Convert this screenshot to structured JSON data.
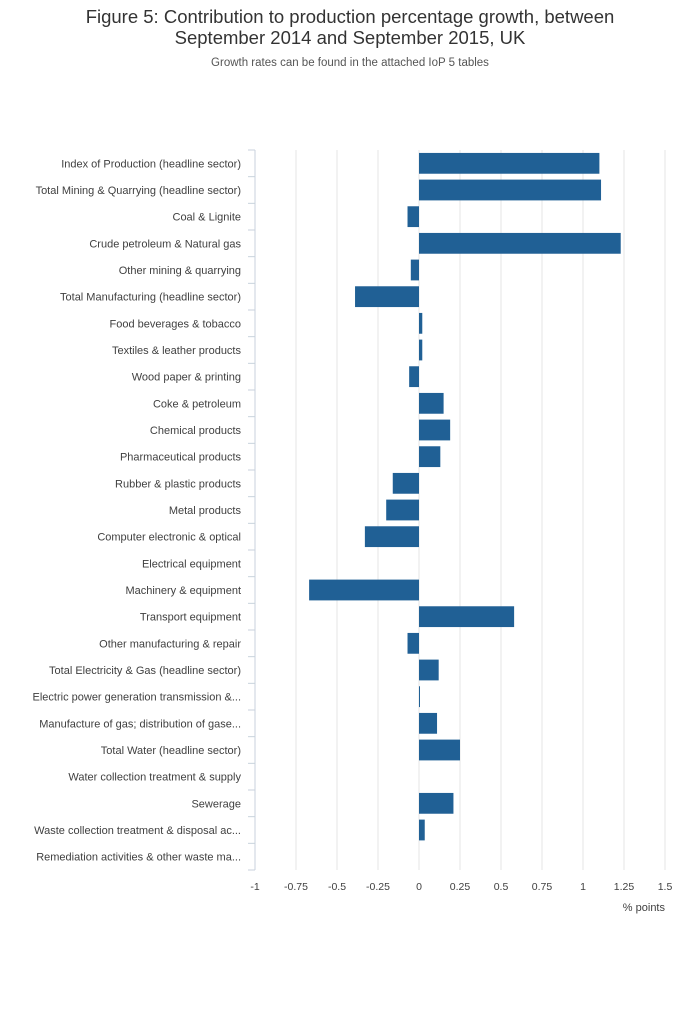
{
  "title_line1": "Figure 5: Contribution to production percentage growth, between",
  "title_line2": "September 2014 and September 2015, UK",
  "subtitle": "Growth rates can be found in the attached IoP 5 tables",
  "colors": {
    "bar": "#206095",
    "grid": "#e5e5e5",
    "axis": "#c8d2dc"
  },
  "chart_data": {
    "type": "bar",
    "orientation": "horizontal",
    "title": "Figure 5: Contribution to production percentage growth, between September 2014 and September 2015, UK",
    "subtitle": "Growth rates can be found in the attached IoP 5 tables",
    "xlabel": "% points",
    "ylabel": "",
    "xlim": [
      -1,
      1.5
    ],
    "xticks": [
      -1,
      -0.75,
      -0.5,
      -0.25,
      0,
      0.25,
      0.5,
      0.75,
      1,
      1.25,
      1.5
    ],
    "xtick_labels": [
      "-1",
      "-0.75",
      "-0.5",
      "-0.25",
      "0",
      "0.25",
      "0.5",
      "0.75",
      "1",
      "1.25",
      "1.5"
    ],
    "categories": [
      "Index of Production (headline sector)",
      "Total Mining & Quarrying (headline sector)",
      "Coal & Lignite",
      "Crude petroleum & Natural gas",
      "Other mining & quarrying",
      "Total Manufacturing (headline sector)",
      "Food beverages & tobacco",
      "Textiles & leather products",
      "Wood paper & printing",
      "Coke & petroleum",
      "Chemical products",
      "Pharmaceutical products",
      "Rubber & plastic products",
      "Metal products",
      "Computer electronic & optical",
      "Electrical equipment",
      "Machinery & equipment",
      "Transport equipment",
      "Other manufacturing & repair",
      "Total Electricity & Gas (headline sector)",
      "Electric power generation transmission &...",
      "Manufacture of gas; distribution of gase...",
      "Total Water (headline sector)",
      "Water collection treatment & supply",
      "Sewerage",
      "Waste collection treatment & disposal ac...",
      "Remediation activities & other waste ma..."
    ],
    "values": [
      1.1,
      1.11,
      -0.07,
      1.23,
      -0.05,
      -0.39,
      0.02,
      0.02,
      -0.06,
      0.15,
      0.19,
      0.13,
      -0.16,
      -0.2,
      -0.33,
      0.0,
      -0.67,
      0.58,
      -0.07,
      0.12,
      0.005,
      0.11,
      0.25,
      0.0,
      0.21,
      0.035,
      0.0
    ],
    "grid": true
  }
}
